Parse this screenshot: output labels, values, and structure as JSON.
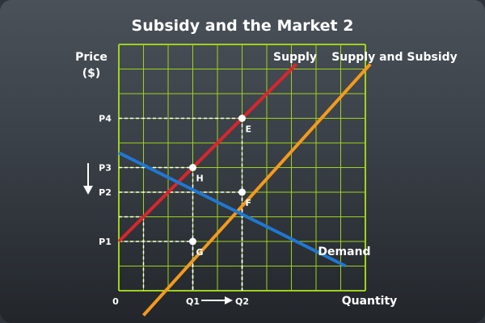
{
  "colors": {
    "grid": "#9fd21b",
    "supply": "#d9262c",
    "subsidy": "#f39a1c",
    "demand": "#1f78d1",
    "text": "#ffffff"
  },
  "chart_data": {
    "type": "line",
    "title": "Subsidy and the Market 2",
    "xlabel": "Quantity",
    "ylabel": [
      "Price",
      "($)"
    ],
    "origin_label": "0",
    "grid": true,
    "xlim": [
      0,
      10
    ],
    "ylim": [
      0,
      10
    ],
    "x_ticks": [
      {
        "label": "Q1",
        "value": 3
      },
      {
        "label": "Q2",
        "value": 5
      }
    ],
    "y_ticks": [
      {
        "label": "P1",
        "value": 2
      },
      {
        "label": "P2",
        "value": 4
      },
      {
        "label": "P3",
        "value": 5
      },
      {
        "label": "P4",
        "value": 7
      }
    ],
    "series": [
      {
        "name": "Supply",
        "color": "#d9262c",
        "points": [
          [
            0,
            2
          ],
          [
            7.2,
            9.2
          ]
        ]
      },
      {
        "name": "Supply and Subsidy",
        "color": "#f39a1c",
        "points": [
          [
            1,
            -1
          ],
          [
            10.2,
            9.2
          ]
        ]
      },
      {
        "name": "Demand",
        "color": "#1f78d1",
        "points": [
          [
            0,
            5.6
          ],
          [
            9.2,
            1
          ]
        ]
      }
    ],
    "points": [
      {
        "label": "E",
        "x": 5,
        "y": 7
      },
      {
        "label": "H",
        "x": 3,
        "y": 5
      },
      {
        "label": "F",
        "x": 5,
        "y": 4
      },
      {
        "label": "G",
        "x": 3,
        "y": 2
      }
    ],
    "guides": [
      {
        "x": 3,
        "y": 5
      },
      {
        "x": 5,
        "y": 7
      },
      {
        "x": 5,
        "y": 4
      },
      {
        "x": 3,
        "y": 2
      },
      {
        "x": 1,
        "y": 3
      }
    ],
    "annotations": [
      {
        "type": "arrow-down",
        "near": "P3-P2"
      },
      {
        "type": "arrow-right",
        "from": "Q1",
        "to": "Q2"
      }
    ]
  }
}
